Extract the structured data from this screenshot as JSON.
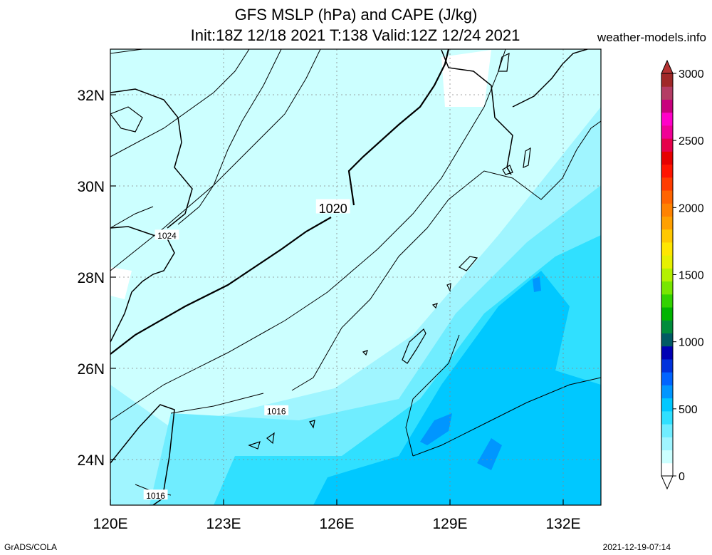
{
  "title": {
    "line1": "GFS MSLP (hPa) and CAPE (J/kg)",
    "line2": "Init:18Z 12/18 2021 T:138 Valid:12Z 12/24 2021"
  },
  "site": "weather-models.info",
  "footer": {
    "left": "GrADS/COLA",
    "right": "2021-12-19-07:14"
  },
  "map": {
    "lon_range": [
      120,
      133
    ],
    "lat_range": [
      23,
      33
    ],
    "lon_ticks": [
      {
        "value": 120,
        "label": "120E"
      },
      {
        "value": 123,
        "label": "123E"
      },
      {
        "value": 126,
        "label": "126E"
      },
      {
        "value": 129,
        "label": "129E"
      },
      {
        "value": 132,
        "label": "132E"
      }
    ],
    "lat_ticks": [
      {
        "value": 24,
        "label": "24N"
      },
      {
        "value": 26,
        "label": "26N"
      },
      {
        "value": 28,
        "label": "28N"
      },
      {
        "value": 30,
        "label": "30N"
      },
      {
        "value": 32,
        "label": "32N"
      }
    ],
    "isobar_labels": [
      {
        "text": "1020",
        "lon": 125.9,
        "lat": 29.5
      },
      {
        "text": "1024",
        "lon": 121.5,
        "lat": 28.9
      },
      {
        "text": "1016",
        "lon": 124.4,
        "lat": 25.05
      },
      {
        "text": "1016",
        "lon": 121.2,
        "lat": 23.2
      }
    ]
  },
  "colorbar": {
    "labels": [
      "0",
      "500",
      "1000",
      "1500",
      "2000",
      "2500",
      "3000"
    ],
    "min": 0,
    "max": 3000,
    "colors": [
      "#ffffff",
      "#ccffff",
      "#a0f5ff",
      "#70edff",
      "#30e0ff",
      "#00c8ff",
      "#0096ff",
      "#0064ff",
      "#0032dc",
      "#0000b4",
      "#005a64",
      "#008c3c",
      "#00b400",
      "#32d200",
      "#78e600",
      "#b4f000",
      "#e6f000",
      "#ffe600",
      "#ffc800",
      "#ffa000",
      "#ff8200",
      "#ff6400",
      "#ff3c00",
      "#ff1400",
      "#e60000",
      "#e6004b",
      "#f00096",
      "#ff00c8",
      "#c8007d",
      "#b43c64",
      "#a02828"
    ],
    "upper_arrow_color": "#b43232"
  }
}
